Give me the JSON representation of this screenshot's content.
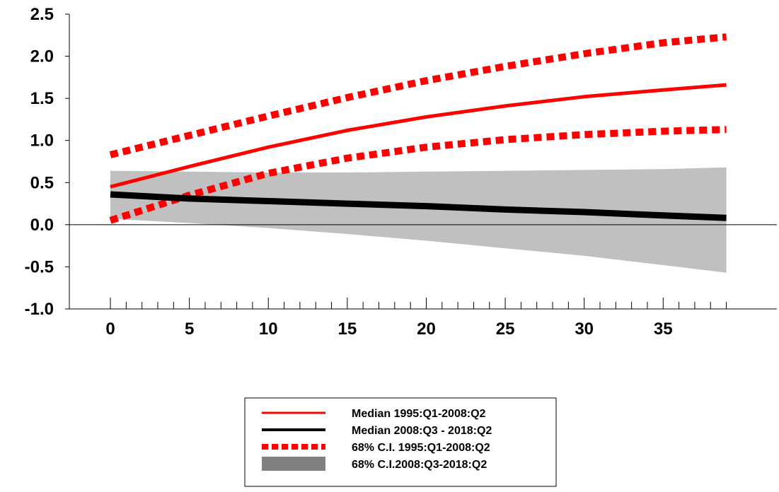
{
  "chart_data": {
    "type": "line",
    "title": "",
    "xlabel": "",
    "ylabel": "",
    "xlim": [
      -2.6,
      42.2
    ],
    "ylim": [
      -1.0,
      2.5
    ],
    "x_ticks": [
      "0",
      "5",
      "10",
      "15",
      "20",
      "25",
      "30",
      "35"
    ],
    "y_ticks": [
      "-1.0",
      "-0.5",
      "0.0",
      "0.5",
      "1.0",
      "1.5",
      "2.0",
      "2.5"
    ],
    "grid": false,
    "legend_position": "bottom-center",
    "colors": {
      "red": "#ff0000",
      "black": "#000000",
      "gray_band": "#c0c0c0",
      "gray_legend": "#808080"
    },
    "x": [
      0,
      5,
      10,
      15,
      20,
      25,
      30,
      35,
      39
    ],
    "series": [
      {
        "name": "Median 1995:Q1-2008:Q2",
        "style": "solid",
        "color": "#ff0000",
        "values": [
          0.45,
          0.69,
          0.92,
          1.12,
          1.28,
          1.41,
          1.52,
          1.6,
          1.66
        ]
      },
      {
        "name": "Median 2008:Q3 - 2018:Q2",
        "style": "solid-thick",
        "color": "#000000",
        "values": [
          0.36,
          0.31,
          0.28,
          0.25,
          0.22,
          0.18,
          0.15,
          0.11,
          0.08
        ]
      },
      {
        "name": "68% C.I. 1995:Q1-2008:Q2",
        "style": "dotted",
        "color": "#ff0000",
        "upper": [
          0.83,
          1.06,
          1.29,
          1.51,
          1.71,
          1.88,
          2.03,
          2.16,
          2.23
        ],
        "lower": [
          0.05,
          0.35,
          0.61,
          0.79,
          0.92,
          1.01,
          1.07,
          1.11,
          1.13
        ]
      },
      {
        "name": "68% C.I.2008:Q3-2018:Q2",
        "style": "band",
        "color": "#c0c0c0",
        "upper": [
          0.64,
          0.63,
          0.62,
          0.62,
          0.63,
          0.64,
          0.65,
          0.66,
          0.68
        ],
        "lower": [
          0.07,
          0.02,
          -0.04,
          -0.11,
          -0.19,
          -0.28,
          -0.37,
          -0.48,
          -0.57
        ]
      }
    ]
  }
}
